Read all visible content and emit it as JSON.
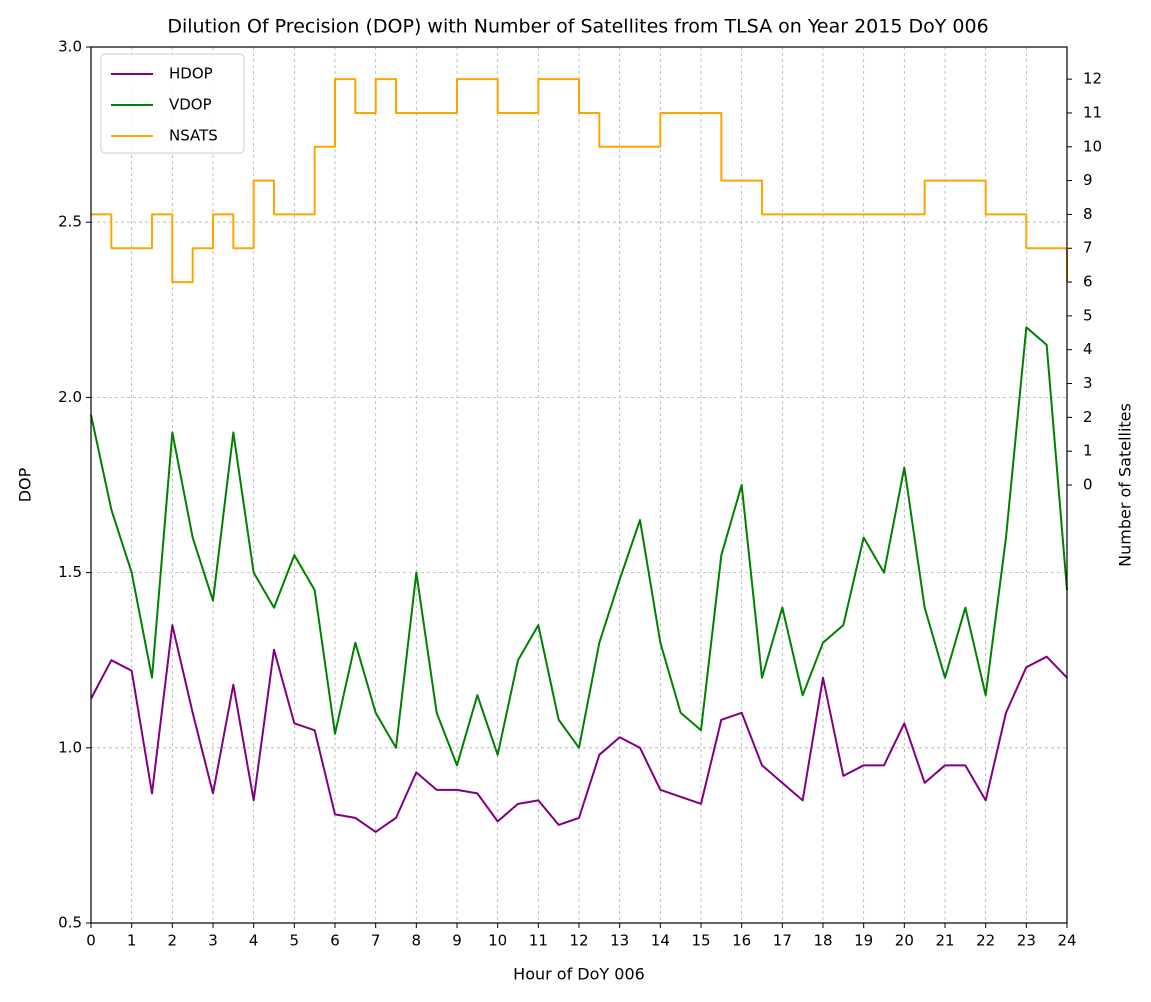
{
  "chart_data": {
    "type": "line",
    "title": "Dilution Of Precision (DOP) with Number of Satellites from TLSA on Year 2015 DoY 006",
    "x_label": "Hour of DoY 006",
    "y_label": "DOP",
    "y2_label": "Number of Satellites",
    "x": [
      0,
      0.5,
      1,
      1.5,
      2,
      2.5,
      3,
      3.5,
      4,
      4.5,
      5,
      5.5,
      6,
      6.5,
      7,
      7.5,
      8,
      8.5,
      9,
      9.5,
      10,
      10.5,
      11,
      11.5,
      12,
      12.5,
      13,
      13.5,
      14,
      14.5,
      15,
      15.5,
      16,
      16.5,
      17,
      17.5,
      18,
      18.5,
      19,
      19.5,
      20,
      20.5,
      21,
      21.5,
      22,
      22.5,
      23,
      23.5,
      24
    ],
    "series": [
      {
        "name": "HDOP",
        "color": "#800080",
        "values": [
          1.14,
          1.25,
          1.22,
          0.87,
          1.35,
          1.1,
          0.87,
          1.18,
          0.85,
          1.28,
          1.07,
          1.05,
          0.81,
          0.8,
          0.76,
          0.8,
          0.93,
          0.88,
          0.88,
          0.87,
          0.79,
          0.84,
          0.85,
          0.78,
          0.8,
          0.98,
          1.03,
          1.0,
          0.88,
          0.86,
          0.84,
          1.08,
          1.1,
          0.95,
          0.9,
          0.85,
          1.2,
          0.92,
          0.95,
          0.95,
          1.07,
          0.9,
          0.95,
          0.95,
          0.85,
          1.1,
          1.23,
          1.26,
          1.2
        ]
      },
      {
        "name": "VDOP",
        "color": "#008000",
        "values": [
          1.95,
          1.68,
          1.5,
          1.2,
          1.9,
          1.6,
          1.42,
          1.9,
          1.5,
          1.4,
          1.55,
          1.45,
          1.04,
          1.3,
          1.1,
          1.0,
          1.5,
          1.1,
          0.95,
          1.15,
          0.98,
          1.25,
          1.35,
          1.08,
          1.0,
          1.3,
          1.48,
          1.65,
          1.3,
          1.1,
          1.05,
          1.55,
          1.75,
          1.2,
          1.4,
          1.15,
          1.3,
          1.35,
          1.6,
          1.5,
          1.8,
          1.4,
          1.2,
          1.4,
          1.15,
          1.6,
          2.2,
          2.15,
          1.45
        ]
      },
      {
        "name": "NSATS",
        "color": "#ffa500",
        "axis": "y2",
        "step": true,
        "values": [
          8,
          7,
          7,
          8,
          6,
          7,
          8,
          7,
          9,
          8,
          8,
          10,
          12,
          11,
          12,
          11,
          11,
          11,
          12,
          12,
          11,
          11,
          12,
          12,
          11,
          10,
          10,
          10,
          11,
          11,
          11,
          9,
          9,
          8,
          8,
          8,
          8,
          8,
          8,
          8,
          8,
          9,
          9,
          9,
          8,
          8,
          7,
          7,
          6
        ]
      }
    ],
    "xlim": [
      0,
      24
    ],
    "xticks": [
      0,
      1,
      2,
      3,
      4,
      5,
      6,
      7,
      8,
      9,
      10,
      11,
      12,
      13,
      14,
      15,
      16,
      17,
      18,
      19,
      20,
      21,
      22,
      23,
      24
    ],
    "ylim": [
      0.5,
      3.0
    ],
    "yticks": [
      0.5,
      {
        "value": 1.0,
        "label": "1.0"
      },
      1.5,
      {
        "value": 2.0,
        "label": "2.0"
      },
      2.5,
      {
        "value": 3.0,
        "label": "3.0"
      }
    ],
    "y2lim": [
      -12.95,
      12.95
    ],
    "y2ticks": [
      0,
      1,
      2,
      3,
      4,
      5,
      6,
      7,
      8,
      9,
      10,
      11,
      12
    ],
    "grid": true,
    "legend": "upper-left"
  }
}
